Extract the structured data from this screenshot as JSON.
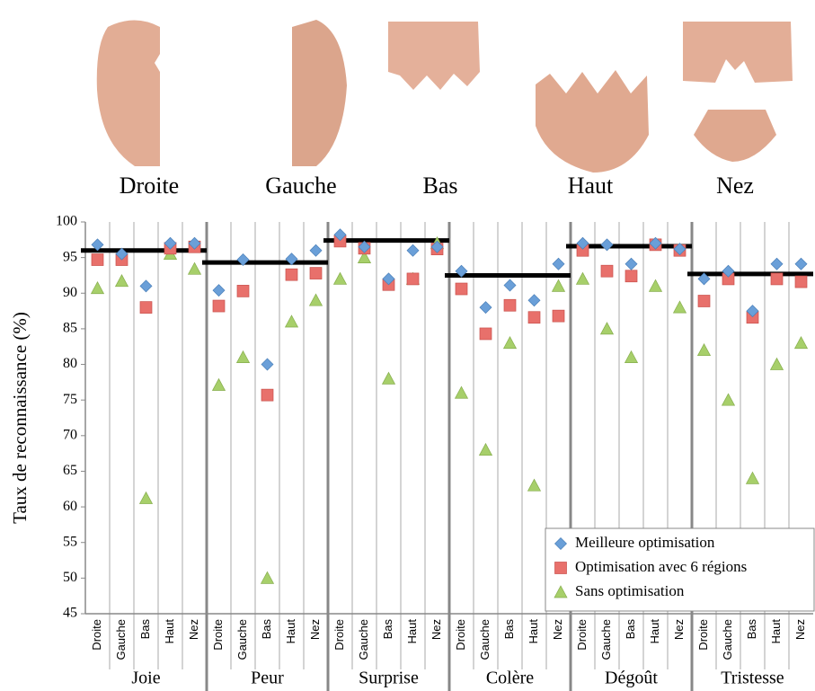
{
  "header": {
    "regions": [
      "Droite",
      "Gauche",
      "Bas",
      "Haut",
      "Nez"
    ]
  },
  "chart_data": {
    "type": "scatter",
    "y_label": "Taux  de reconnaissance (%)",
    "groups": [
      "Joie",
      "Peur",
      "Surprise",
      "Colère",
      "Dégoût",
      "Tristesse"
    ],
    "categories": [
      "Droite",
      "Gauche",
      "Bas",
      "Haut",
      "Nez",
      "Droite",
      "Gauche",
      "Bas",
      "Haut",
      "Nez",
      "Droite",
      "Gauche",
      "Bas",
      "Haut",
      "Nez",
      "Droite",
      "Gauche",
      "Bas",
      "Haut",
      "Nez",
      "Droite",
      "Gauche",
      "Bas",
      "Haut",
      "Nez",
      "Droite",
      "Gauche",
      "Bas",
      "Haut",
      "Nez"
    ],
    "series": [
      {
        "name": "Meilleure optimisation",
        "color": "#6a9fd8",
        "marker": "diamond",
        "values": [
          96.8,
          95.5,
          91,
          97,
          97,
          90.4,
          94.7,
          80,
          94.8,
          96,
          98.2,
          96.5,
          92,
          96,
          96.5,
          93.1,
          88,
          91.1,
          89,
          94.1,
          97,
          96.8,
          94.1,
          97,
          96.2,
          92,
          93.1,
          87.5,
          94.1,
          94.1
        ]
      },
      {
        "name": "Optimisation avec 6 régions",
        "color": "#e8706b",
        "marker": "square",
        "values": [
          94.7,
          94.7,
          88,
          96.3,
          96.5,
          88.2,
          90.3,
          75.7,
          92.6,
          92.8,
          97.3,
          96.3,
          91.2,
          92,
          96.2,
          90.6,
          84.3,
          88.3,
          86.6,
          86.8,
          96,
          93.1,
          92.4,
          96.8,
          96,
          88.9,
          92,
          86.6,
          92,
          91.6
        ]
      },
      {
        "name": "Sans optimisation",
        "color": "#a7cf6a",
        "marker": "triangle",
        "values": [
          90.7,
          91.7,
          61.2,
          95.5,
          93.4,
          77.1,
          81,
          50,
          86,
          89,
          92,
          95,
          78,
          92,
          97,
          76,
          68,
          83,
          63,
          91,
          92,
          85,
          81,
          91,
          88,
          82,
          75,
          64,
          80,
          83
        ]
      }
    ],
    "group_lines": [
      96,
      94.3,
      97.4,
      92.5,
      96.6,
      92.7
    ],
    "ylim": [
      45,
      100
    ],
    "yticks": [
      45,
      50,
      55,
      60,
      65,
      70,
      75,
      80,
      85,
      90,
      95,
      100
    ],
    "legend": "bottom-right"
  }
}
